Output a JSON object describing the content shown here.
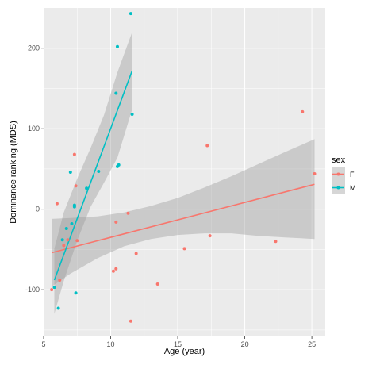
{
  "chart_data": {
    "type": "scatter",
    "xlabel": "Age (year)",
    "ylabel": "Dominance ranking (MDS)",
    "xlim": [
      5,
      26
    ],
    "ylim": [
      -158,
      250
    ],
    "x_ticks": [
      5,
      10,
      15,
      20,
      25
    ],
    "y_ticks": [
      -100,
      0,
      100,
      200
    ],
    "x_tick_labels": [
      "5",
      "10",
      "15",
      "20",
      "25"
    ],
    "y_tick_labels": [
      "-100",
      "0",
      "100",
      "200"
    ],
    "grid": true,
    "legend": {
      "title": "sex",
      "placement": "right",
      "entries": [
        "F",
        "M"
      ]
    },
    "colors": {
      "F": "#F8766D",
      "M": "#00BFC4",
      "band": "#999999",
      "panel": "#EBEBEB",
      "grid": "#FFFFFF"
    },
    "series": [
      {
        "name": "F",
        "points": [
          [
            5.6,
            -100
          ],
          [
            6.0,
            7
          ],
          [
            6.2,
            -88
          ],
          [
            6.5,
            -45
          ],
          [
            6.8,
            -38
          ],
          [
            7.3,
            68
          ],
          [
            7.4,
            29
          ],
          [
            7.5,
            -39
          ],
          [
            10.2,
            -77
          ],
          [
            10.4,
            -74
          ],
          [
            10.4,
            -16
          ],
          [
            11.3,
            -5
          ],
          [
            11.5,
            -139
          ],
          [
            11.9,
            -55
          ],
          [
            13.5,
            -93
          ],
          [
            15.5,
            -49
          ],
          [
            17.2,
            79
          ],
          [
            17.4,
            -33
          ],
          [
            22.3,
            -40
          ],
          [
            24.3,
            121
          ],
          [
            25.2,
            44
          ]
        ],
        "fit": {
          "x": [
            5.6,
            25.2
          ],
          "y": [
            -54,
            31
          ]
        },
        "band": {
          "x": [
            5.6,
            7,
            9,
            11,
            13,
            15,
            17,
            19,
            21,
            23,
            25.2
          ],
          "upper": [
            -12,
            -11,
            -9,
            -4,
            4,
            14,
            27,
            41,
            56,
            71,
            87
          ],
          "lower": [
            -96,
            -80,
            -61,
            -46,
            -37,
            -32,
            -30,
            -30,
            -33,
            -35,
            -37
          ]
        }
      },
      {
        "name": "M",
        "points": [
          [
            5.8,
            -97
          ],
          [
            6.1,
            -123
          ],
          [
            6.4,
            -38
          ],
          [
            6.7,
            -24
          ],
          [
            7.0,
            46
          ],
          [
            7.1,
            -18
          ],
          [
            7.3,
            5
          ],
          [
            7.3,
            3
          ],
          [
            7.4,
            -104
          ],
          [
            8.2,
            26
          ],
          [
            9.1,
            47
          ],
          [
            10.4,
            144
          ],
          [
            10.5,
            202
          ],
          [
            10.5,
            53
          ],
          [
            10.6,
            55
          ],
          [
            11.5,
            243
          ],
          [
            11.6,
            118
          ]
        ],
        "fit": {
          "x": [
            5.8,
            11.6
          ],
          "y": [
            -88,
            172
          ]
        },
        "band": {
          "x": [
            5.8,
            6.5,
            7.5,
            8.5,
            9.5,
            10.5,
            11.6
          ],
          "upper": [
            -49,
            -4,
            38,
            76,
            117,
            170,
            220
          ],
          "lower": [
            -130,
            -89,
            -39,
            3,
            33,
            64,
            124
          ]
        }
      }
    ]
  }
}
